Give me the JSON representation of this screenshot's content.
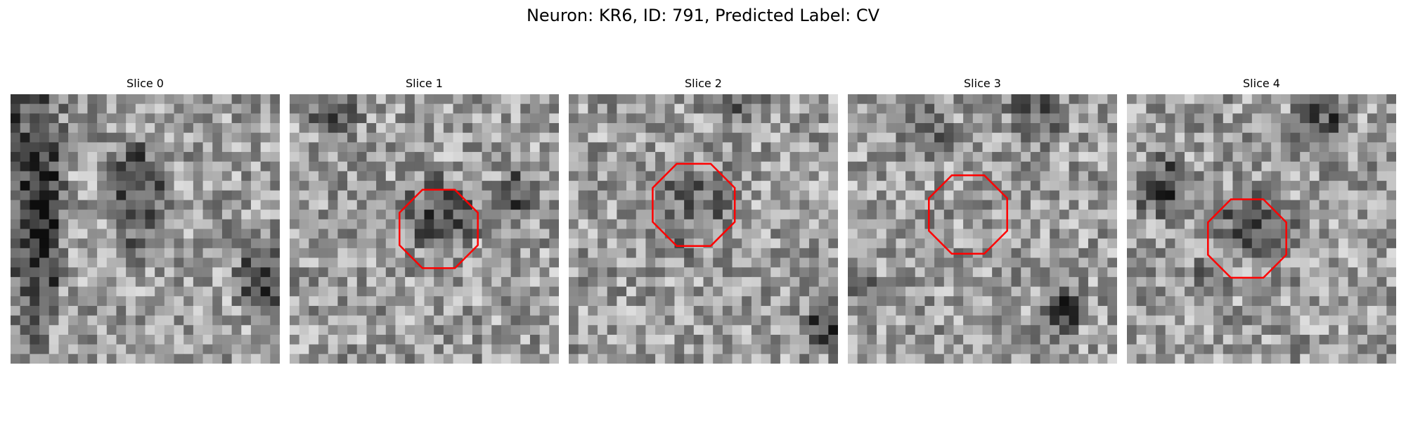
{
  "figure": {
    "title": "Neuron: KR6, ID: 791, Predicted Label: CV"
  },
  "colors": {
    "roi_outline": "#ff0000",
    "colormap": "grayscale"
  },
  "panels": [
    {
      "title": "Slice 0",
      "seed": 11,
      "roi": false,
      "blobs": [
        [
          1,
          0,
          4,
          28,
          0.25
        ],
        [
          13,
          10,
          3,
          6,
          0.2
        ],
        [
          26,
          19,
          3,
          4,
          0.1
        ],
        [
          3,
          13,
          2,
          10,
          0.25
        ]
      ]
    },
    {
      "title": "Slice 1",
      "seed": 23,
      "roi": true,
      "roi_center": [
        15.0,
        13.5
      ],
      "roi_radius": 4.2,
      "blobs": [
        [
          15,
          12,
          4,
          4,
          0.25
        ],
        [
          4,
          1,
          3,
          3,
          0.3
        ],
        [
          23,
          10,
          2,
          3,
          0.25
        ]
      ]
    },
    {
      "title": "Slice 2",
      "seed": 37,
      "roi": true,
      "roi_center": [
        12.5,
        11.0
      ],
      "roi_radius": 4.4,
      "blobs": [
        [
          27,
          23,
          3,
          3,
          0.15
        ],
        [
          12,
          11,
          5,
          5,
          0.35
        ],
        [
          17,
          0,
          3,
          3,
          0.3
        ]
      ]
    },
    {
      "title": "Slice 3",
      "seed": 53,
      "roi": true,
      "roi_center": [
        12.0,
        12.0
      ],
      "roi_radius": 4.2,
      "blobs": [
        [
          22,
          22,
          2,
          3,
          0.15
        ],
        [
          0,
          19,
          2,
          2,
          0.2
        ],
        [
          8,
          4,
          3,
          3,
          0.35
        ],
        [
          19,
          1,
          3,
          4,
          0.3
        ]
      ]
    },
    {
      "title": "Slice 4",
      "seed": 71,
      "roi": true,
      "roi_center": [
        12.0,
        14.5
      ],
      "roi_radius": 4.2,
      "blobs": [
        [
          13,
          13,
          4,
          3,
          0.2
        ],
        [
          3,
          9,
          3,
          3,
          0.2
        ],
        [
          20,
          2,
          3,
          5,
          0.25
        ],
        [
          8,
          19,
          2,
          3,
          0.35
        ]
      ]
    }
  ]
}
